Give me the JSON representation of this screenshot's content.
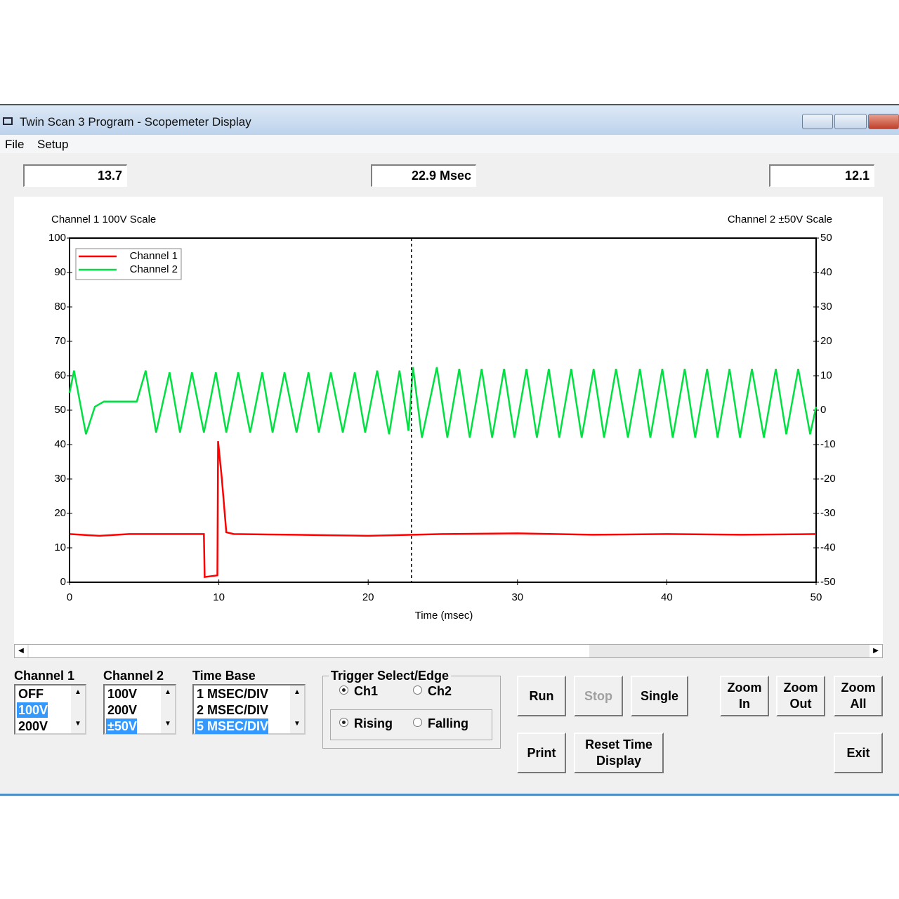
{
  "window": {
    "title": "Twin Scan 3 Program - Scopemeter Display",
    "menu": [
      "File",
      "Setup"
    ]
  },
  "readouts": {
    "left": "13.7",
    "center": "22.9 Msec",
    "right": "12.1"
  },
  "chart_data": {
    "type": "line",
    "y_label": "Channel 1 100V Scale",
    "y2_label": "Channel 2 ±50V Scale",
    "x_label": "Time (msec)",
    "xlim": [
      0,
      50
    ],
    "xticks": [
      0,
      10,
      20,
      30,
      40,
      50
    ],
    "ylim": [
      0,
      100
    ],
    "yticks": [
      0,
      10,
      20,
      30,
      40,
      50,
      60,
      70,
      80,
      90,
      100
    ],
    "y2lim": [
      -50,
      50
    ],
    "y2ticks": [
      -50,
      -40,
      -30,
      -20,
      -10,
      0,
      10,
      20,
      30,
      40,
      50
    ],
    "cursor": 22.9,
    "legend": "upper left",
    "series": [
      {
        "name": "Channel 1",
        "color": "#ff0000",
        "x": [
          0,
          2,
          4,
          6,
          8,
          9,
          9.05,
          9.9,
          9.95,
          10.2,
          10.5,
          11,
          15,
          20,
          25,
          30,
          35,
          40,
          45,
          50
        ],
        "values": [
          14,
          13.5,
          14,
          14,
          14,
          14,
          1.5,
          2,
          41,
          30,
          14.5,
          14,
          13.8,
          13.5,
          14,
          14.2,
          13.8,
          14,
          13.8,
          14
        ]
      },
      {
        "name": "Channel 2",
        "color": "#00e040",
        "axis": "y2",
        "x": [
          0,
          0.3,
          1.1,
          1.7,
          2.3,
          4.5,
          5.1,
          5.8,
          6.7,
          7.4,
          8.2,
          9.0,
          9.8,
          10.5,
          11.3,
          12.1,
          12.9,
          13.6,
          14.4,
          15.2,
          16.0,
          16.7,
          17.5,
          18.3,
          19.1,
          19.8,
          20.6,
          21.4,
          22.1,
          22.7,
          23.0,
          23.6,
          24.6,
          25.3,
          26.1,
          26.8,
          27.6,
          28.3,
          29.1,
          29.8,
          30.6,
          31.3,
          32.1,
          32.8,
          33.6,
          34.3,
          35.1,
          35.8,
          36.6,
          37.4,
          38.2,
          38.9,
          39.7,
          40.4,
          41.2,
          41.9,
          42.7,
          43.4,
          44.2,
          44.9,
          45.7,
          46.5,
          47.3,
          48.0,
          48.8,
          49.6,
          50
        ],
        "values": [
          5,
          11.5,
          -7,
          1,
          2.5,
          2.5,
          11.5,
          -6.5,
          11,
          -6.5,
          11,
          -6.5,
          11,
          -6.5,
          11,
          -6.5,
          11,
          -6.5,
          11,
          -6.5,
          11,
          -6.5,
          11,
          -6.5,
          11,
          -6.5,
          11.5,
          -7,
          11.5,
          -6,
          12.5,
          -8,
          12.5,
          -8,
          12,
          -8,
          12,
          -8,
          12,
          -8,
          12,
          -8,
          12,
          -8,
          12,
          -8,
          12,
          -8,
          12,
          -8,
          12,
          -8,
          12,
          -8,
          12,
          -8,
          12,
          -8,
          12,
          -8,
          12,
          -8,
          12,
          -7,
          12,
          -7,
          1
        ]
      }
    ]
  },
  "controls": {
    "channel1": {
      "label": "Channel 1",
      "options": [
        "OFF",
        "100V",
        "200V"
      ],
      "selected": 1
    },
    "channel2": {
      "label": "Channel 2",
      "options": [
        "100V",
        "200V",
        "±50V"
      ],
      "selected": 2
    },
    "time_base": {
      "label": "Time Base",
      "options": [
        "1 MSEC/DIV",
        "2 MSEC/DIV",
        "5 MSEC/DIV"
      ],
      "selected": 2
    },
    "trigger": {
      "label": "Trigger Select/Edge",
      "channel": [
        "Ch1",
        "Ch2"
      ],
      "channel_selected": 0,
      "edge": [
        "Rising",
        "Falling"
      ],
      "edge_selected": 0
    },
    "buttons": [
      {
        "label": "Run",
        "enabled": true
      },
      {
        "label": "Stop",
        "enabled": false
      },
      {
        "label": "Single",
        "enabled": true
      },
      {
        "label": "Zoom In",
        "enabled": true
      },
      {
        "label": "Zoom Out",
        "enabled": true
      },
      {
        "label": "Zoom All",
        "enabled": true
      },
      {
        "label": "Print",
        "enabled": true
      },
      {
        "label": "Reset Time Display",
        "enabled": true
      },
      {
        "label": "Exit",
        "enabled": true
      }
    ]
  }
}
